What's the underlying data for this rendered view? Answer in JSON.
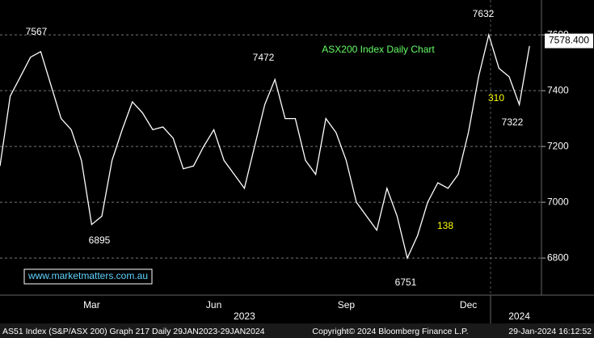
{
  "chart_data": {
    "type": "line",
    "title": "ASX200 Index Daily Chart",
    "categories": [
      null,
      null,
      null,
      null,
      null,
      null,
      null,
      null,
      null,
      "Mar",
      null,
      null,
      null,
      null,
      null,
      null,
      null,
      null,
      null,
      null,
      null,
      "Jun",
      null,
      null,
      null,
      null,
      null,
      null,
      null,
      null,
      null,
      null,
      null,
      null,
      "Sep",
      null,
      null,
      null,
      null,
      null,
      null,
      null,
      null,
      null,
      null,
      null,
      "Dec",
      null,
      null,
      null,
      null,
      null,
      null
    ],
    "year_labels": [
      null,
      null,
      null,
      null,
      null,
      null,
      null,
      null,
      null,
      null,
      null,
      null,
      null,
      null,
      null,
      null,
      null,
      null,
      null,
      null,
      null,
      null,
      null,
      null,
      "2023",
      null,
      null,
      null,
      null,
      null,
      null,
      null,
      null,
      null,
      null,
      null,
      null,
      null,
      null,
      null,
      null,
      null,
      null,
      null,
      null,
      null,
      null,
      null,
      null,
      null,
      null,
      "2024",
      null
    ],
    "values": [
      7130,
      7380,
      7450,
      7520,
      7540,
      7420,
      7300,
      7260,
      7150,
      6920,
      6950,
      7150,
      7260,
      7360,
      7320,
      7260,
      7270,
      7230,
      7120,
      7130,
      7200,
      7260,
      7150,
      7100,
      7050,
      7200,
      7350,
      7440,
      7300,
      7300,
      7150,
      7100,
      7300,
      7250,
      7150,
      7000,
      6950,
      6900,
      7050,
      6950,
      6800,
      6880,
      7000,
      7070,
      7050,
      7100,
      7250,
      7450,
      7600,
      7480,
      7450,
      7350,
      7560
    ],
    "color": "#ffffff",
    "ylim": [
      6667,
      7725
    ],
    "yticks": [
      6800,
      7000,
      7200,
      7400,
      7600
    ],
    "grid": true,
    "last_price": {
      "value": 7578.4,
      "label": "7578.400"
    },
    "annotations": [
      {
        "text": "7567",
        "color": "#ffffff"
      },
      {
        "text": "7472",
        "color": "#ffffff"
      },
      {
        "text": "6895",
        "color": "#ffffff"
      },
      {
        "text": "6751",
        "color": "#ffffff"
      },
      {
        "text": "7632",
        "color": "#ffffff"
      },
      {
        "text": "7322",
        "color": "#ffffff"
      },
      {
        "text": "310",
        "color": "#ffff00"
      },
      {
        "text": "138",
        "color": "#ffff00"
      }
    ],
    "watermark": "www.marketmatters.com.au",
    "footer": {
      "left": "AS51 Index (S&P/ASX 200) Graph 217  Daily 29JAN2023-29JAN2024",
      "center": "Copyright© 2024 Bloomberg Finance L.P.",
      "right": "29-Jan-2024 16:12:52"
    }
  }
}
